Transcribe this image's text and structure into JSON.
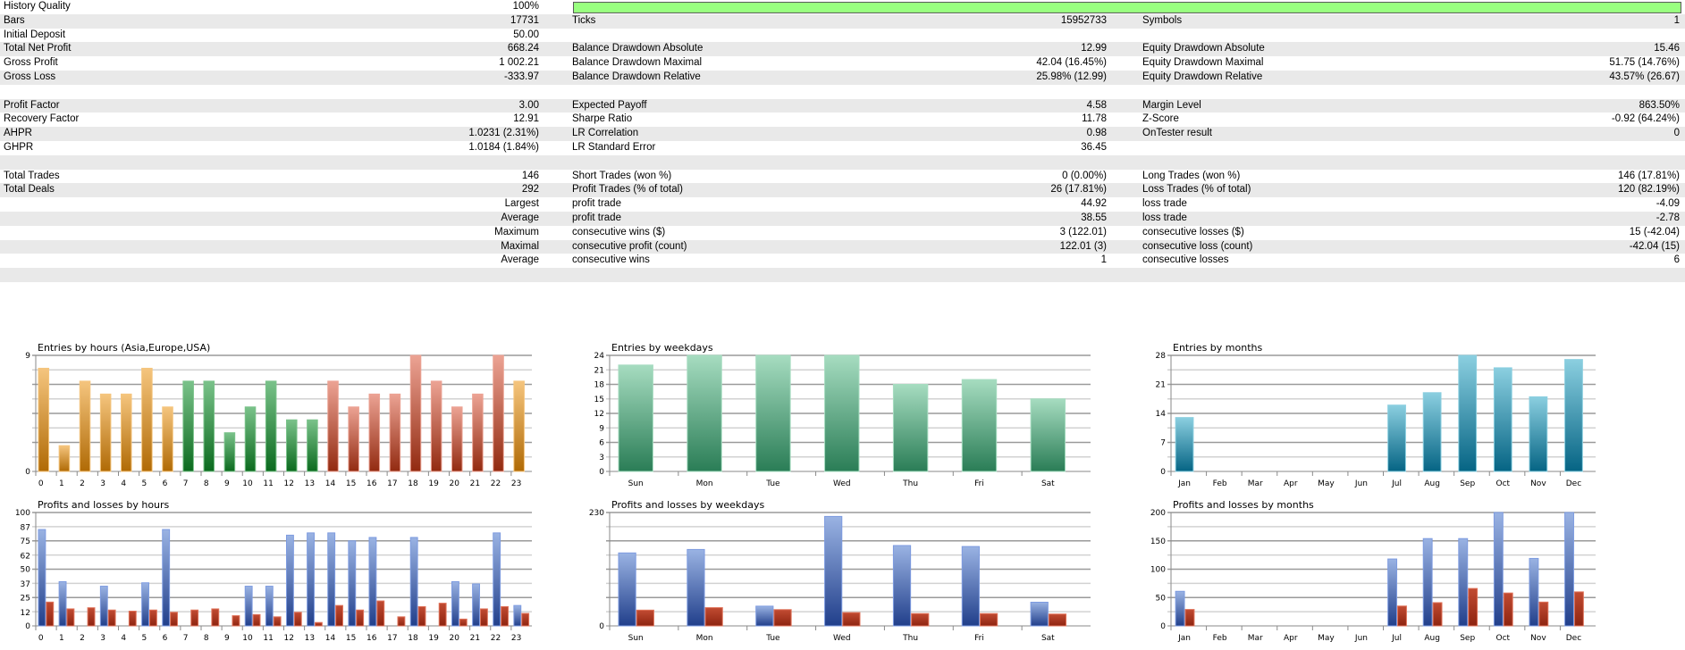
{
  "history_quality": {
    "label": "History Quality",
    "value": "100%",
    "fraction": 1.0
  },
  "rows": [
    {
      "l1": "Bars",
      "v1": "17731",
      "l2": "Ticks",
      "v2": "15952733",
      "l3": "Symbols",
      "v3": "1"
    },
    {
      "l1": "Initial Deposit",
      "v1": "50.00",
      "l2": "",
      "v2": "",
      "l3": "",
      "v3": ""
    },
    {
      "l1": "Total Net Profit",
      "v1": "668.24",
      "l2": "Balance Drawdown Absolute",
      "v2": "12.99",
      "l3": "Equity Drawdown Absolute",
      "v3": "15.46"
    },
    {
      "l1": "Gross Profit",
      "v1": "1 002.21",
      "l2": "Balance Drawdown Maximal",
      "v2": "42.04 (16.45%)",
      "l3": "Equity Drawdown Maximal",
      "v3": "51.75 (14.76%)"
    },
    {
      "l1": "Gross Loss",
      "v1": "-333.97",
      "l2": "Balance Drawdown Relative",
      "v2": "25.98% (12.99)",
      "l3": "Equity Drawdown Relative",
      "v3": "43.57% (26.67)"
    },
    {
      "l1": "",
      "v1": "",
      "l2": "",
      "v2": "",
      "l3": "",
      "v3": ""
    },
    {
      "l1": "Profit Factor",
      "v1": "3.00",
      "l2": "Expected Payoff",
      "v2": "4.58",
      "l3": "Margin Level",
      "v3": "863.50%"
    },
    {
      "l1": "Recovery Factor",
      "v1": "12.91",
      "l2": "Sharpe Ratio",
      "v2": "11.78",
      "l3": "Z-Score",
      "v3": "-0.92 (64.24%)"
    },
    {
      "l1": "AHPR",
      "v1": "1.0231 (2.31%)",
      "l2": "LR Correlation",
      "v2": "0.98",
      "l3": "OnTester result",
      "v3": "0"
    },
    {
      "l1": "GHPR",
      "v1": "1.0184 (1.84%)",
      "l2": "LR Standard Error",
      "v2": "36.45",
      "l3": "",
      "v3": ""
    },
    {
      "l1": "",
      "v1": "",
      "l2": "",
      "v2": "",
      "l3": "",
      "v3": ""
    },
    {
      "l1": "Total Trades",
      "v1": "146",
      "l2": "Short Trades (won %)",
      "v2": "0 (0.00%)",
      "l3": "Long Trades (won %)",
      "v3": "146 (17.81%)"
    },
    {
      "l1": "Total Deals",
      "v1": "292",
      "l2": "Profit Trades (% of total)",
      "v2": "26 (17.81%)",
      "l3": "Loss Trades (% of total)",
      "v3": "120 (82.19%)"
    },
    {
      "l1": "",
      "v1": "Largest",
      "l2": "profit trade",
      "v2": "44.92",
      "l3": "loss trade",
      "v3": "-4.09"
    },
    {
      "l1": "",
      "v1": "Average",
      "l2": "profit trade",
      "v2": "38.55",
      "l3": "loss trade",
      "v3": "-2.78"
    },
    {
      "l1": "",
      "v1": "Maximum",
      "l2": "consecutive wins ($)",
      "v2": "3 (122.01)",
      "l3": "consecutive losses ($)",
      "v3": "15 (-42.04)"
    },
    {
      "l1": "",
      "v1": "Maximal",
      "l2": "consecutive profit (count)",
      "v2": "122.01 (3)",
      "l3": "consecutive loss (count)",
      "v3": "-42.04 (15)"
    },
    {
      "l1": "",
      "v1": "Average",
      "l2": "consecutive wins",
      "v2": "1",
      "l3": "consecutive losses",
      "v3": "6"
    },
    {
      "l1": "",
      "v1": "",
      "l2": "",
      "v2": "",
      "l3": "",
      "v3": ""
    }
  ],
  "colors": {
    "row_alt": "#e9e9e9",
    "quality_bar": "#99ff80",
    "asia": [
      "#f5c57e",
      "#b06a05"
    ],
    "europe": [
      "#7ac28a",
      "#0b6a1e"
    ],
    "usa": [
      "#eca394",
      "#922a10"
    ],
    "weekday_green": [
      "#a6dcc0",
      "#2a7d56"
    ],
    "month_teal": [
      "#8bcfe0",
      "#056484"
    ],
    "profit_blue": [
      "#9ab3e3",
      "#213f8b"
    ],
    "loss_red": [
      "#c14b32",
      "#8e2410"
    ]
  },
  "chart_data": [
    {
      "id": "entries-hours",
      "type": "bar",
      "title": "Entries by hours (Asia,Europe,USA)",
      "categories": [
        "0",
        "1",
        "2",
        "3",
        "4",
        "5",
        "6",
        "7",
        "8",
        "9",
        "10",
        "11",
        "12",
        "13",
        "14",
        "15",
        "16",
        "17",
        "18",
        "19",
        "20",
        "21",
        "22",
        "23"
      ],
      "values": [
        8,
        2,
        7,
        6,
        6,
        8,
        5,
        7,
        7,
        3,
        5,
        7,
        4,
        4,
        7,
        5,
        6,
        6,
        9,
        7,
        5,
        6,
        9,
        7
      ],
      "regions": [
        "asia",
        "asia",
        "asia",
        "asia",
        "asia",
        "asia",
        "asia",
        "europe",
        "europe",
        "europe",
        "europe",
        "europe",
        "europe",
        "europe",
        "usa",
        "usa",
        "usa",
        "usa",
        "usa",
        "usa",
        "usa",
        "usa",
        "usa",
        "asia"
      ],
      "yticks": [
        "0",
        "9"
      ],
      "ylim": [
        0,
        9
      ],
      "gridlines": 8
    },
    {
      "id": "pl-hours",
      "type": "bar",
      "title": "Profits and losses by hours",
      "categories": [
        "0",
        "1",
        "2",
        "3",
        "4",
        "5",
        "6",
        "7",
        "8",
        "9",
        "10",
        "11",
        "12",
        "13",
        "14",
        "15",
        "16",
        "17",
        "18",
        "19",
        "20",
        "21",
        "22",
        "23"
      ],
      "series": [
        {
          "name": "profit",
          "values": [
            85,
            39,
            0,
            35,
            0,
            38,
            85,
            0,
            0,
            0,
            35,
            35,
            80,
            82,
            82,
            75,
            78,
            0,
            78,
            0,
            39,
            37,
            82,
            18
          ]
        },
        {
          "name": "loss",
          "values": [
            21,
            15,
            16,
            14,
            13,
            14,
            12,
            14,
            15,
            9,
            10,
            8,
            12,
            3,
            18,
            14,
            22,
            8,
            17,
            20,
            6,
            15,
            17,
            11
          ]
        }
      ],
      "yticks": [
        "0",
        "12",
        "25",
        "37",
        "50",
        "62",
        "75",
        "87",
        "100"
      ],
      "ylim": [
        0,
        100
      ],
      "gridlines": 8
    },
    {
      "id": "entries-weekdays",
      "type": "bar",
      "title": "Entries by weekdays",
      "categories": [
        "Sun",
        "Mon",
        "Tue",
        "Wed",
        "Thu",
        "Fri",
        "Sat"
      ],
      "values": [
        22,
        24,
        24,
        24,
        18,
        19,
        15
      ],
      "yticks": [
        "0",
        "3",
        "6",
        "9",
        "12",
        "15",
        "18",
        "21",
        "24"
      ],
      "ylim": [
        0,
        24
      ],
      "gridlines": 8
    },
    {
      "id": "pl-weekdays",
      "type": "bar",
      "title": "Profits and losses by weekdays",
      "categories": [
        "Sun",
        "Mon",
        "Tue",
        "Wed",
        "Thu",
        "Fri",
        "Sat"
      ],
      "series": [
        {
          "name": "profit",
          "values": [
            148,
            155,
            40,
            222,
            163,
            161,
            48
          ]
        },
        {
          "name": "loss",
          "values": [
            32,
            37,
            33,
            27,
            25,
            25,
            24
          ]
        }
      ],
      "yticks": [
        "0",
        "230"
      ],
      "ylim": [
        0,
        230
      ],
      "gridlines": 8
    },
    {
      "id": "entries-months",
      "type": "bar",
      "title": "Entries by months",
      "categories": [
        "Jan",
        "Feb",
        "Mar",
        "Apr",
        "May",
        "Jun",
        "Jul",
        "Aug",
        "Sep",
        "Oct",
        "Nov",
        "Dec"
      ],
      "values": [
        13,
        0,
        0,
        0,
        0,
        0,
        16,
        19,
        28,
        25,
        18,
        27
      ],
      "yticks": [
        "0",
        "7",
        "14",
        "21",
        "28"
      ],
      "ylim": [
        0,
        28
      ],
      "gridlines": 8
    },
    {
      "id": "pl-months",
      "type": "bar",
      "title": "Profits and losses by months",
      "categories": [
        "Jan",
        "Feb",
        "Mar",
        "Apr",
        "May",
        "Jun",
        "Jul",
        "Aug",
        "Sep",
        "Oct",
        "Nov",
        "Dec"
      ],
      "series": [
        {
          "name": "profit",
          "values": [
            61,
            0,
            0,
            0,
            0,
            0,
            118,
            154,
            154,
            200,
            119,
            200
          ]
        },
        {
          "name": "loss",
          "values": [
            29,
            0,
            0,
            0,
            0,
            0,
            35,
            41,
            66,
            58,
            42,
            60
          ]
        }
      ],
      "yticks": [
        "0",
        "50",
        "100",
        "150",
        "200"
      ],
      "ylim": [
        0,
        200
      ],
      "gridlines": 8
    }
  ]
}
